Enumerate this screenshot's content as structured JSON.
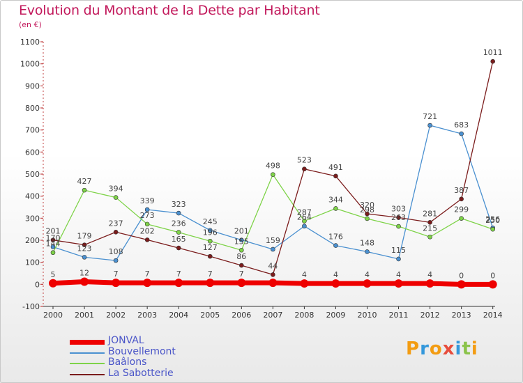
{
  "title": "Evolution du Montant de la Dette par Habitant",
  "unit": "(en €)",
  "logo": {
    "letters": [
      "P",
      "r",
      "o",
      "x",
      "i",
      "t",
      "i"
    ],
    "colors": [
      "#f39c12",
      "#3498db",
      "#f39c12",
      "#e74c3c",
      "#3498db",
      "#8bc34a",
      "#f39c12"
    ]
  },
  "chart_data": {
    "type": "line",
    "x": [
      2000,
      2001,
      2002,
      2003,
      2004,
      2005,
      2006,
      2007,
      2008,
      2009,
      2010,
      2011,
      2012,
      2013,
      2014
    ],
    "ylim": [
      -100,
      1100
    ],
    "yticks": [
      -100,
      0,
      100,
      200,
      300,
      400,
      500,
      600,
      700,
      800,
      900,
      1000,
      1100
    ],
    "grid": false,
    "legend_position": "bottom-left",
    "series": [
      {
        "name": "JONVAL",
        "color": "#ee0000",
        "width": 7,
        "values": [
          5,
          12,
          7,
          7,
          7,
          7,
          7,
          7,
          4,
          4,
          4,
          4,
          4,
          0,
          0
        ],
        "labels": [
          "5",
          "12",
          "7",
          "7",
          "7",
          "7",
          "7",
          "",
          "4",
          "4",
          "4",
          "4",
          "4",
          "0",
          "0"
        ]
      },
      {
        "name": "Bouvellemont",
        "color": "#4a90d0",
        "width": 1.3,
        "values": [
          170,
          123,
          108,
          339,
          323,
          245,
          201,
          159,
          264,
          176,
          148,
          115,
          721,
          683,
          256
        ],
        "labels": [
          "170",
          "123",
          "108",
          "339",
          "323",
          "245",
          "201",
          "159",
          "264",
          "176",
          "148",
          "115",
          "721",
          "683",
          "256"
        ]
      },
      {
        "name": "Baâlons",
        "color": "#7ed348",
        "width": 1.3,
        "values": [
          144,
          427,
          394,
          273,
          236,
          196,
          155,
          498,
          287,
          344,
          298,
          263,
          215,
          299,
          250
        ],
        "labels": [
          "144",
          "427",
          "394",
          "273",
          "236",
          "196",
          "155",
          "498",
          "287",
          "344",
          "298",
          "263",
          "215",
          "299",
          "250"
        ]
      },
      {
        "name": "La Sabotterie",
        "color": "#7b1c1c",
        "width": 1.3,
        "values": [
          201,
          179,
          237,
          202,
          165,
          127,
          86,
          44,
          523,
          491,
          320,
          303,
          281,
          387,
          1011
        ],
        "labels": [
          "201",
          "179",
          "237",
          "202",
          "165",
          "127",
          "86",
          "44",
          "523",
          "491",
          "320",
          "303",
          "281",
          "387",
          "1011"
        ]
      }
    ]
  }
}
